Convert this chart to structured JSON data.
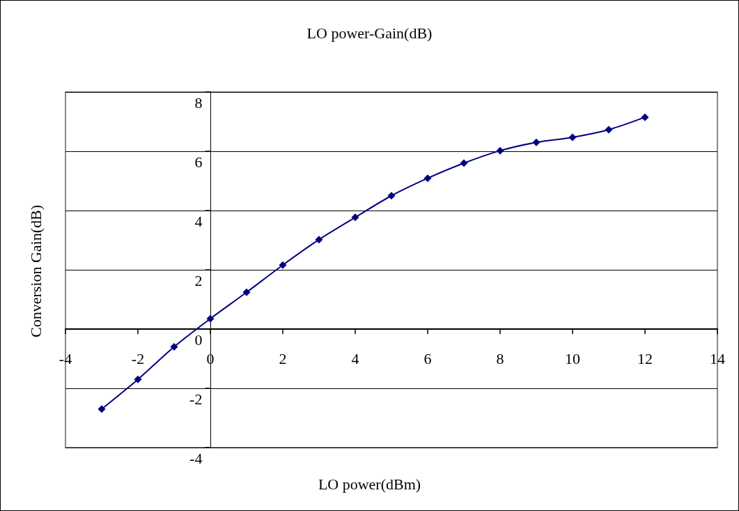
{
  "chart_data": {
    "type": "line",
    "title": "LO power-Gain(dB)",
    "xlabel": "LO power(dBm)",
    "ylabel": "Conversion Gain(dB)",
    "x": [
      -3,
      -2,
      -1,
      0,
      1,
      2,
      3,
      4,
      5,
      6,
      7,
      8,
      9,
      10,
      11,
      12
    ],
    "series": [
      {
        "color": "#000080",
        "values": [
          -2.7,
          -1.7,
          -0.6,
          0.35,
          1.24,
          2.16,
          3.02,
          3.77,
          4.5,
          5.09,
          5.6,
          6.02,
          6.3,
          6.47,
          6.73,
          7.15
        ]
      }
    ],
    "xlim": [
      -4,
      14
    ],
    "xticks": [
      -4,
      -2,
      0,
      2,
      4,
      6,
      8,
      10,
      12,
      14
    ],
    "ylim": [
      -4,
      8
    ],
    "yticks": [
      -4,
      -2,
      0,
      2,
      4,
      6,
      8
    ],
    "grid": "y",
    "marker": "diamond",
    "line_style": "solid"
  }
}
